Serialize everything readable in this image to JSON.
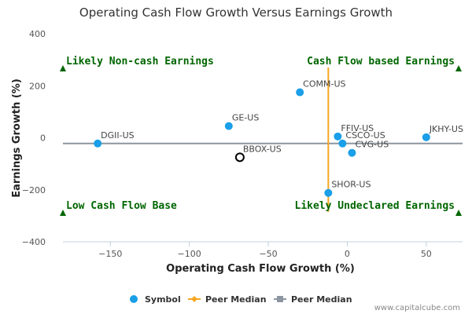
{
  "chart_data": {
    "type": "scatter",
    "title": "Operating Cash Flow Growth Versus Earnings Growth",
    "xlabel": "Operating Cash Flow Growth (%)",
    "ylabel": "Earnings Growth (%)",
    "xlim": [
      -180,
      73
    ],
    "ylim": [
      -400,
      400
    ],
    "x_ticks": [
      -150,
      -100,
      -50,
      0,
      50
    ],
    "y_ticks": [
      400,
      200,
      0,
      -200,
      -400
    ],
    "grid": false,
    "legend_position": "bottom",
    "colors": {
      "symbol": "#1a9fe8",
      "peer_median_x": "#f5a623",
      "peer_median_y": "#8c96a0",
      "highlight_stroke": "#000000",
      "quadrant_text": "#006600"
    },
    "points": [
      {
        "label": "COMM-US",
        "x": -30,
        "y": 175
      },
      {
        "label": "GE-US",
        "x": -75,
        "y": 45
      },
      {
        "label": "DGII-US",
        "x": -158,
        "y": -22
      },
      {
        "label": "FFIV-US",
        "x": -6,
        "y": 5
      },
      {
        "label": "CSCO-US",
        "x": -3,
        "y": -22
      },
      {
        "label": "CVG-US",
        "x": 3,
        "y": -58
      },
      {
        "label": "JKHY-US",
        "x": 50,
        "y": 2
      },
      {
        "label": "SHOR-US",
        "x": -12,
        "y": -212
      },
      {
        "label": "BBOX-US",
        "x": -68,
        "y": -75,
        "highlight": true
      }
    ],
    "peer_median_x": -12,
    "peer_median_y": -22,
    "quadrants": [
      {
        "label": "Likely Non-cash Earnings",
        "position": "top-left"
      },
      {
        "label": "Cash Flow based Earnings",
        "position": "top-right"
      },
      {
        "label": "Low Cash Flow Base",
        "position": "bottom-left"
      },
      {
        "label": "Likely Undeclared Earnings",
        "position": "bottom-right"
      }
    ],
    "legend": [
      {
        "label": "Symbol",
        "marker": "circle",
        "color": "#1a9fe8"
      },
      {
        "label": "Peer Median",
        "marker": "diamond-line",
        "color": "#f5a623"
      },
      {
        "label": "Peer Median",
        "marker": "square-line",
        "color": "#8c96a0"
      }
    ]
  },
  "credit": "www.capitalcube.com"
}
